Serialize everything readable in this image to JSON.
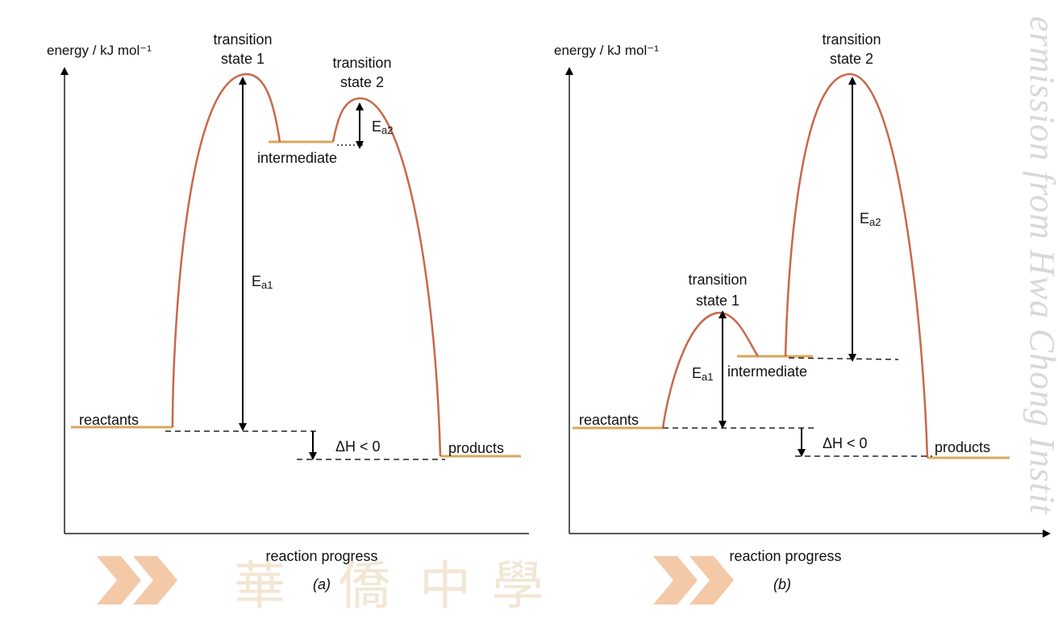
{
  "watermark": {
    "text": "ermission from Hwa Chong Instit",
    "chars": [
      "華",
      "僑",
      "中",
      "學"
    ],
    "color": "#e07a3e"
  },
  "colors": {
    "curve": "#c8684a",
    "level": "#d9a75c",
    "text": "#111111"
  },
  "panel_a": {
    "y_axis_label": "energy / kJ mol⁻¹",
    "x_axis_label": "reaction progress",
    "caption": "(a)",
    "ts1_label_line1": "transition",
    "ts1_label_line2": "state 1",
    "ts2_label_line1": "transition",
    "ts2_label_line2": "state 2",
    "intermediate_label": "intermediate",
    "reactants_label": "reactants",
    "products_label": "products",
    "ea1_main": "E",
    "ea1_sub": "a1",
    "ea2_main": "E",
    "ea2_sub": "a2",
    "dh_label": "ΔH < 0"
  },
  "panel_b": {
    "y_axis_label": "energy / kJ mol⁻¹",
    "x_axis_label": "reaction progress",
    "caption": "(b)",
    "ts1_label_line1": "transition",
    "ts1_label_line2": "state 1",
    "ts2_label_line1": "transition",
    "ts2_label_line2": "state 2",
    "intermediate_label": "intermediate",
    "reactants_label": "reactants",
    "products_label": "products",
    "ea1_main": "E",
    "ea1_sub": "a1",
    "ea2_main": "E",
    "ea2_sub": "a2",
    "dh_label": "ΔH < 0"
  }
}
